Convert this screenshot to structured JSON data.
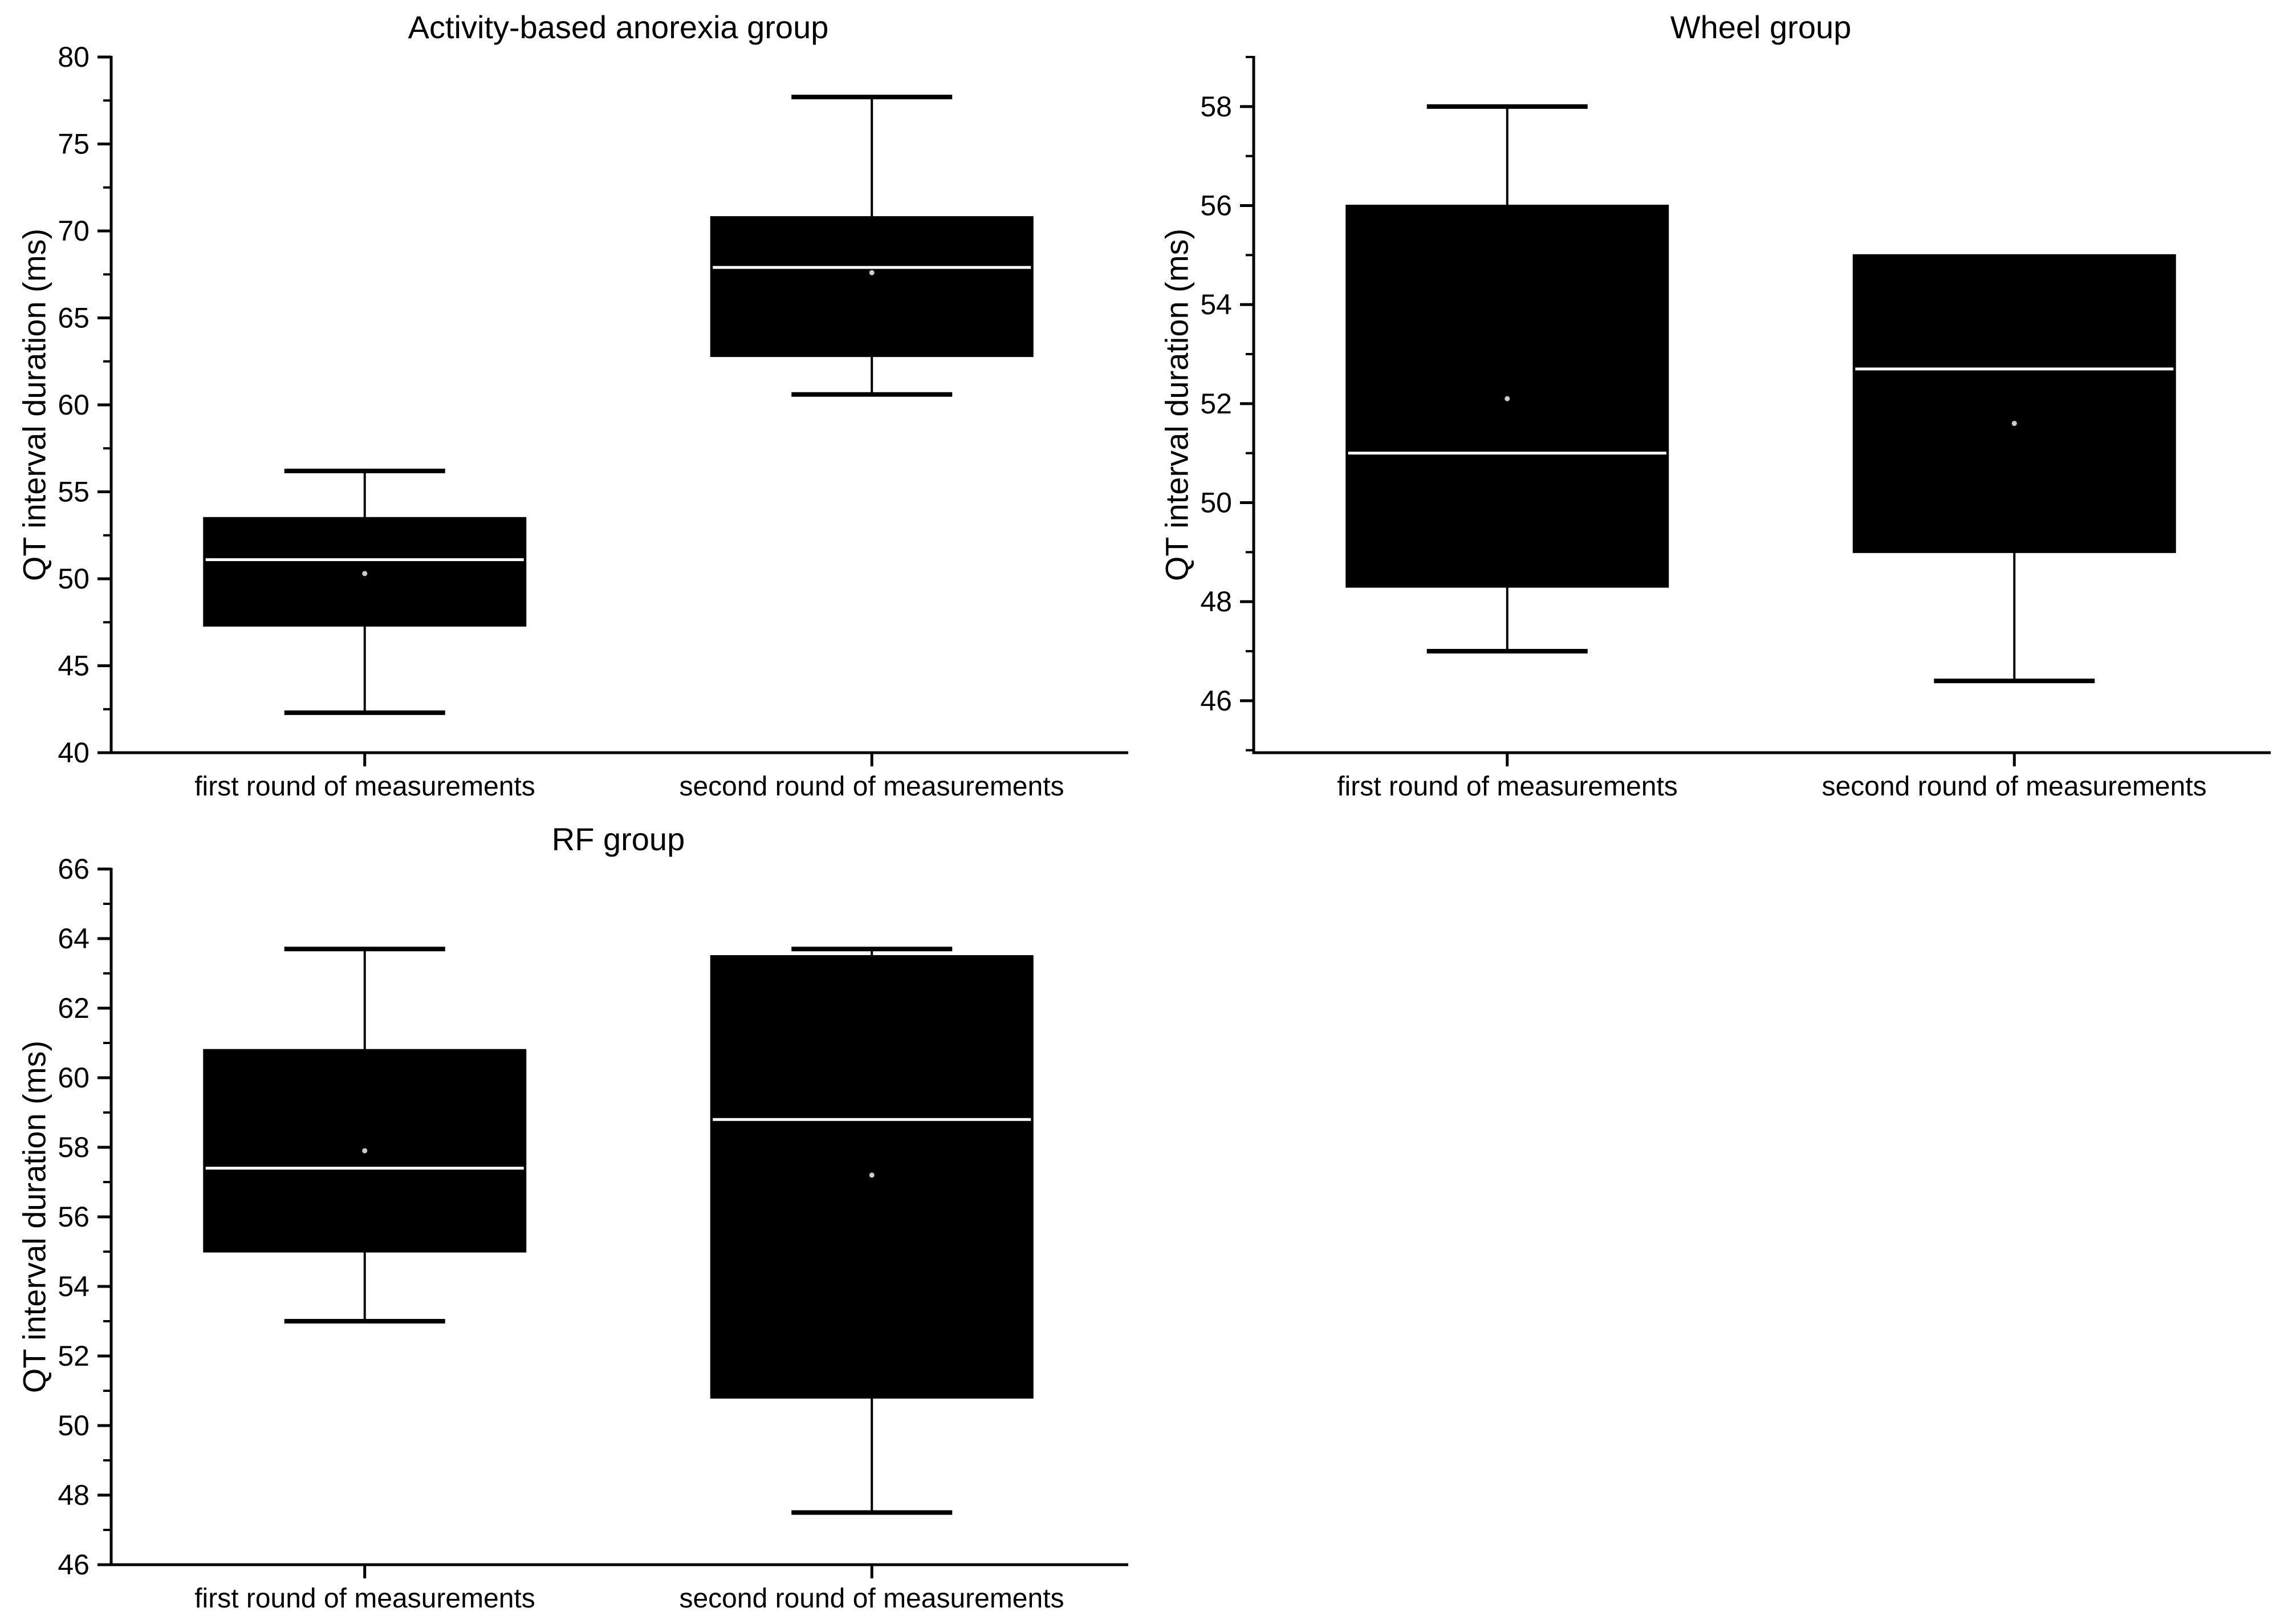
{
  "page": {
    "background": "#ffffff",
    "description_colors": {
      "box_fill": "#000000",
      "box_stroke": "#000000",
      "median_line": "#ffffff",
      "mean_marker": "#cccccc",
      "axis": "#000000",
      "text": "#000000"
    }
  },
  "chart_data": [
    {
      "type": "box",
      "panel": "top-left",
      "title": "Activity-based anorexia group",
      "ylabel": "QT interval duration (ms)",
      "xlabel": "",
      "grid": false,
      "legend": "none",
      "ylim": [
        40,
        80
      ],
      "ytick_major": [
        40,
        45,
        50,
        55,
        60,
        65,
        70,
        75,
        80
      ],
      "ytick_minor": [
        42.5,
        47.5,
        52.5,
        57.5,
        62.5,
        67.5,
        72.5,
        77.5
      ],
      "categories": [
        "first round of measurements",
        "second round of measurements"
      ],
      "boxes": [
        {
          "category": "first round of measurements",
          "whisker_low": 42.3,
          "q1": 47.3,
          "median": 51.1,
          "mean": 50.3,
          "q3": 53.5,
          "whisker_high": 56.2
        },
        {
          "category": "second round of measurements",
          "whisker_low": 60.6,
          "q1": 62.8,
          "median": 67.9,
          "mean": 67.6,
          "q3": 70.8,
          "whisker_high": 77.7
        }
      ]
    },
    {
      "type": "box",
      "panel": "top-right",
      "title": "Wheel group",
      "ylabel": "QT interval duration (ms)",
      "xlabel": "",
      "grid": false,
      "legend": "none",
      "ylim": [
        44.95,
        59
      ],
      "ytick_major": [
        46,
        48,
        50,
        52,
        54,
        56,
        58
      ],
      "ytick_minor": [
        45,
        47,
        49,
        51,
        53,
        55,
        57,
        59
      ],
      "categories": [
        "first round of measurements",
        "second round of measurements"
      ],
      "boxes": [
        {
          "category": "first round of measurements",
          "whisker_low": 47.0,
          "q1": 48.3,
          "median": 51.0,
          "mean": 52.1,
          "q3": 56.0,
          "whisker_high": 58.0
        },
        {
          "category": "second round of measurements",
          "whisker_low": 46.4,
          "q1": 49.0,
          "median": 52.7,
          "mean": 51.6,
          "q3": 55.0,
          "whisker_high": null
        }
      ]
    },
    {
      "type": "box",
      "panel": "bottom-left",
      "title": "RF group",
      "ylabel": "QT interval duration (ms)",
      "xlabel": "",
      "grid": false,
      "legend": "none",
      "ylim": [
        46,
        66
      ],
      "ytick_major": [
        46,
        48,
        50,
        52,
        54,
        56,
        58,
        60,
        62,
        64,
        66
      ],
      "ytick_minor": [
        47,
        49,
        51,
        53,
        55,
        57,
        59,
        61,
        63,
        65
      ],
      "categories": [
        "first round of measurements",
        "second round of measurements"
      ],
      "boxes": [
        {
          "category": "first round of measurements",
          "whisker_low": 53.0,
          "q1": 55.0,
          "median": 57.4,
          "mean": 57.9,
          "q3": 60.8,
          "whisker_high": 63.7
        },
        {
          "category": "second round of measurements",
          "whisker_low": 47.5,
          "q1": 50.8,
          "median": 58.8,
          "mean": 57.2,
          "q3": 63.5,
          "whisker_high": 63.7
        }
      ]
    }
  ]
}
